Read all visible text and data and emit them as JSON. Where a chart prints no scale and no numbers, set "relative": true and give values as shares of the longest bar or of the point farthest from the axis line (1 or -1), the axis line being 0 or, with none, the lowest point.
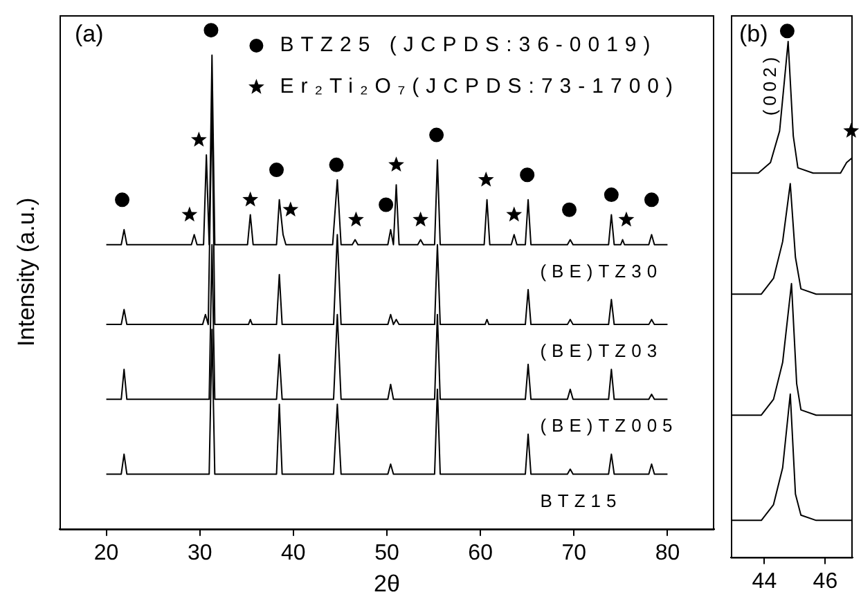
{
  "chart_data": [
    {
      "type": "line",
      "xlabel": "2θ",
      "ylabel": "Intensity (a.u.)",
      "annotations": [
        "(a)"
      ],
      "xlim": [
        15,
        85
      ],
      "xticks": [
        20,
        30,
        40,
        50,
        60,
        70,
        80
      ],
      "relative": true,
      "tick_labels": "x",
      "legend": "top right",
      "series": [
        {
          "name": "(BE)TZ30",
          "color": "#000000",
          "x": [
            20,
            21.6,
            21.9,
            22.2,
            29.1,
            29.4,
            29.7,
            30.4,
            30.7,
            31.0,
            31.3,
            31.6,
            35.1,
            35.4,
            35.7,
            38.2,
            38.5,
            38.9,
            39.2,
            44.2,
            44.7,
            45.1,
            46.3,
            46.6,
            46.9,
            50.1,
            50.4,
            50.7,
            51.0,
            51.3,
            53.3,
            53.6,
            53.9,
            55.1,
            55.4,
            55.7,
            60.4,
            60.7,
            61.0,
            63.3,
            63.6,
            63.9,
            64.8,
            65.1,
            65.4,
            69.3,
            69.6,
            69.9,
            73.7,
            74.0,
            74.3,
            75.0,
            75.2,
            75.4,
            78.0,
            78.3,
            78.6,
            80
          ],
          "values": [
            0.57,
            0.57,
            0.6,
            0.57,
            0.57,
            0.59,
            0.57,
            0.57,
            0.75,
            0.57,
            0.95,
            0.57,
            0.57,
            0.63,
            0.57,
            0.57,
            0.66,
            0.59,
            0.57,
            0.57,
            0.7,
            0.57,
            0.57,
            0.58,
            0.57,
            0.57,
            0.6,
            0.57,
            0.69,
            0.57,
            0.57,
            0.58,
            0.57,
            0.57,
            0.74,
            0.57,
            0.57,
            0.66,
            0.57,
            0.57,
            0.59,
            0.57,
            0.57,
            0.66,
            0.57,
            0.57,
            0.58,
            0.57,
            0.57,
            0.63,
            0.57,
            0.57,
            0.58,
            0.57,
            0.57,
            0.59,
            0.57,
            0.57
          ]
        },
        {
          "name": "(BE)TZ03",
          "color": "#000000",
          "x": [
            20,
            21.6,
            21.9,
            22.2,
            30.3,
            30.6,
            30.9,
            31.3,
            31.6,
            35.2,
            35.4,
            35.6,
            38.2,
            38.5,
            38.8,
            44.3,
            44.7,
            45.1,
            50.1,
            50.4,
            50.7,
            51.0,
            51.3,
            55.1,
            55.4,
            55.7,
            60.5,
            60.7,
            60.9,
            64.8,
            65.1,
            65.4,
            69.3,
            69.6,
            69.9,
            73.7,
            74.0,
            74.3,
            78.0,
            78.3,
            78.6,
            80
          ],
          "values": [
            0.41,
            0.41,
            0.44,
            0.41,
            0.41,
            0.43,
            0.41,
            0.86,
            0.41,
            0.41,
            0.42,
            0.41,
            0.41,
            0.51,
            0.41,
            0.41,
            0.59,
            0.41,
            0.41,
            0.43,
            0.41,
            0.42,
            0.41,
            0.41,
            0.57,
            0.41,
            0.41,
            0.42,
            0.41,
            0.41,
            0.48,
            0.41,
            0.41,
            0.42,
            0.41,
            0.41,
            0.46,
            0.41,
            0.41,
            0.42,
            0.41,
            0.41
          ]
        },
        {
          "name": "(BE)TZ005",
          "color": "#000000",
          "x": [
            20,
            21.6,
            21.9,
            22.2,
            31.0,
            31.3,
            31.6,
            38.2,
            38.5,
            38.8,
            44.3,
            44.7,
            45.1,
            50.1,
            50.4,
            50.7,
            55.1,
            55.4,
            55.7,
            64.8,
            65.1,
            65.4,
            69.3,
            69.6,
            69.9,
            73.7,
            74.0,
            74.3,
            78.0,
            78.3,
            78.6,
            80
          ],
          "values": [
            0.26,
            0.26,
            0.32,
            0.26,
            0.26,
            0.57,
            0.26,
            0.26,
            0.35,
            0.26,
            0.26,
            0.43,
            0.26,
            0.26,
            0.29,
            0.26,
            0.26,
            0.43,
            0.26,
            0.26,
            0.33,
            0.26,
            0.26,
            0.28,
            0.26,
            0.26,
            0.32,
            0.26,
            0.26,
            0.27,
            0.26,
            0.26
          ]
        },
        {
          "name": "BTZ15",
          "color": "#000000",
          "x": [
            20,
            21.6,
            21.9,
            22.2,
            31.0,
            31.3,
            31.6,
            38.2,
            38.5,
            38.8,
            44.3,
            44.7,
            45.1,
            50.1,
            50.4,
            50.7,
            55.1,
            55.4,
            55.7,
            64.8,
            65.1,
            65.4,
            69.3,
            69.6,
            69.9,
            73.7,
            74.0,
            74.3,
            78.0,
            78.3,
            78.6,
            80
          ],
          "values": [
            0.11,
            0.11,
            0.15,
            0.11,
            0.11,
            0.4,
            0.11,
            0.11,
            0.25,
            0.11,
            0.11,
            0.25,
            0.11,
            0.11,
            0.13,
            0.11,
            0.11,
            0.28,
            0.11,
            0.11,
            0.19,
            0.11,
            0.11,
            0.12,
            0.11,
            0.11,
            0.15,
            0.11,
            0.11,
            0.13,
            0.11,
            0.11
          ]
        },
        {
          "type": "scatter",
          "marker": "circle",
          "name": "BTZ25 (JCPDS:36-0019)",
          "color": "#000000",
          "x": [
            21.7,
            31.2,
            38.2,
            44.6,
            49.9,
            55.3,
            65.0,
            69.5,
            74.0,
            78.3
          ],
          "values": [
            0.66,
            1.0,
            0.72,
            0.73,
            0.65,
            0.79,
            0.71,
            0.64,
            0.67,
            0.66
          ]
        },
        {
          "type": "scatter",
          "marker": "star",
          "name": "Er₂Ti₂O₇(JCPDS:73-1700)",
          "color": "#000000",
          "x": [
            28.9,
            29.9,
            35.4,
            39.7,
            46.7,
            51.0,
            53.6,
            60.6,
            63.6,
            75.6
          ],
          "values": [
            0.63,
            0.78,
            0.66,
            0.64,
            0.62,
            0.73,
            0.62,
            0.7,
            0.63,
            0.62
          ]
        }
      ]
    },
    {
      "type": "line",
      "annotations": [
        "(b)",
        "(002)"
      ],
      "xlim": [
        42.9,
        46.9
      ],
      "xticks": [
        44,
        46
      ],
      "relative": true,
      "tick_labels": "x",
      "series": [
        {
          "color": "#000000",
          "x": [
            42.9,
            43.8,
            44.2,
            44.5,
            44.78,
            44.95,
            45.1,
            45.6,
            46.5,
            46.7,
            46.9
          ],
          "values": [
            0.73,
            0.73,
            0.75,
            0.81,
            0.98,
            0.8,
            0.74,
            0.73,
            0.73,
            0.75,
            0.76
          ]
        },
        {
          "color": "#000000",
          "x": [
            42.9,
            43.9,
            44.3,
            44.6,
            44.85,
            45.02,
            45.2,
            45.7,
            46.9
          ],
          "values": [
            0.5,
            0.5,
            0.53,
            0.6,
            0.71,
            0.57,
            0.51,
            0.5,
            0.5
          ]
        },
        {
          "color": "#000000",
          "x": [
            42.9,
            43.9,
            44.3,
            44.6,
            44.89,
            45.06,
            45.2,
            45.7,
            46.9
          ],
          "values": [
            0.27,
            0.27,
            0.3,
            0.37,
            0.52,
            0.33,
            0.28,
            0.27,
            0.27
          ]
        },
        {
          "color": "#000000",
          "x": [
            42.9,
            43.9,
            44.3,
            44.6,
            44.85,
            45.02,
            45.2,
            45.7,
            46.9
          ],
          "values": [
            0.07,
            0.07,
            0.1,
            0.17,
            0.31,
            0.12,
            0.08,
            0.07,
            0.07
          ]
        },
        {
          "type": "scatter",
          "marker": "circle",
          "color": "#000000",
          "x": [
            44.75
          ],
          "values": [
            1.0
          ]
        },
        {
          "type": "scatter",
          "marker": "star",
          "color": "#000000",
          "x": [
            46.85
          ],
          "values": [
            0.81
          ]
        }
      ]
    }
  ]
}
